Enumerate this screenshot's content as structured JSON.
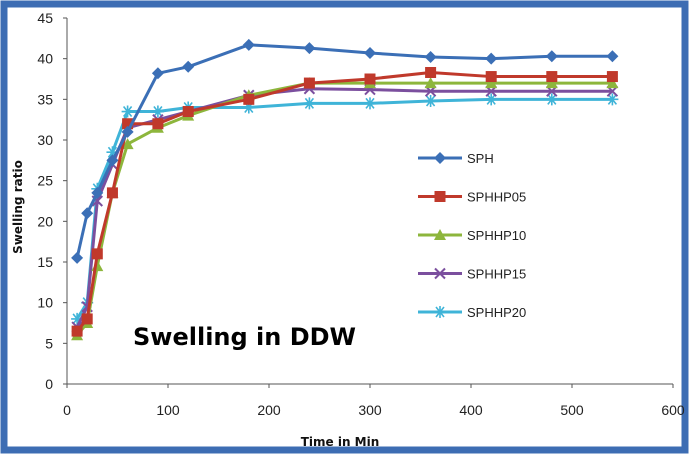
{
  "chart_data": {
    "type": "line",
    "title": "",
    "annotation": "Swelling in DDW",
    "xlabel": "Time in Min",
    "ylabel": "Swelling ratio",
    "xlim": [
      0,
      600
    ],
    "ylim": [
      0,
      45
    ],
    "x_ticks": [
      0,
      100,
      200,
      300,
      400,
      500,
      600
    ],
    "y_ticks": [
      0,
      5,
      10,
      15,
      20,
      25,
      30,
      35,
      40,
      45
    ],
    "grid": false,
    "legend_position": "right",
    "x": [
      10,
      20,
      30,
      45,
      60,
      90,
      120,
      180,
      240,
      300,
      360,
      420,
      480,
      540
    ],
    "series": [
      {
        "name": "SPH",
        "color": "#3b6fb6",
        "marker": "diamond",
        "values": [
          15.5,
          21,
          23.5,
          27.5,
          31,
          38.2,
          39,
          41.7,
          41.3,
          40.7,
          40.2,
          40,
          40.3,
          40.3
        ]
      },
      {
        "name": "SPHHP05",
        "color": "#c0392b",
        "marker": "square",
        "values": [
          6.5,
          8,
          16,
          23.5,
          32,
          32,
          33.5,
          35,
          37,
          37.5,
          38.3,
          37.8,
          37.8,
          37.8
        ]
      },
      {
        "name": "SPHHP10",
        "color": "#8db63c",
        "marker": "triangle",
        "values": [
          6,
          7.5,
          14.5,
          23.5,
          29.5,
          31.5,
          33,
          35.5,
          37,
          37,
          37,
          37,
          37,
          37
        ]
      },
      {
        "name": "SPHHP15",
        "color": "#7b4f9e",
        "marker": "x",
        "values": [
          7,
          9.5,
          22.5,
          27,
          31.5,
          32.5,
          33.5,
          35.5,
          36.3,
          36.2,
          36,
          36,
          36,
          36
        ]
      },
      {
        "name": "SPHHP20",
        "color": "#3fb4d8",
        "marker": "asterisk",
        "values": [
          8,
          10,
          24,
          28.5,
          33.5,
          33.5,
          34,
          34,
          34.5,
          34.5,
          34.8,
          35,
          35,
          35
        ]
      }
    ]
  }
}
